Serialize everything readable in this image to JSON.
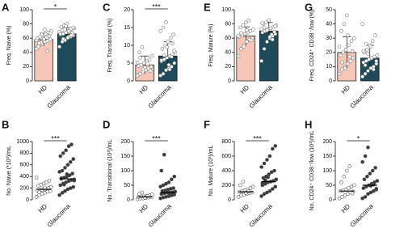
{
  "chart_data": [
    {
      "type": "bar",
      "panel": "A",
      "ylabel": "Freq. Naive (%)",
      "categories": [
        "HD",
        "Glaucoma"
      ],
      "values": [
        58,
        66
      ],
      "errors": [
        9,
        9
      ],
      "colors": [
        "#f6c6b8",
        "#1f4a5a"
      ],
      "ylim": [
        0,
        100
      ],
      "yticks": [
        0,
        20,
        40,
        60,
        80,
        100
      ],
      "significance": "*",
      "points": [
        [
          45,
          50,
          52,
          55,
          56,
          58,
          60,
          62,
          64,
          66,
          68,
          70,
          48,
          54,
          59,
          61,
          63,
          57,
          53,
          65,
          72,
          42,
          67,
          60
        ],
        [
          48,
          55,
          58,
          60,
          62,
          64,
          65,
          66,
          68,
          70,
          72,
          74,
          76,
          78,
          80,
          63,
          67,
          69,
          71,
          57,
          61,
          73,
          75,
          66,
          59,
          77,
          70,
          64
        ]
      ]
    },
    {
      "type": "bar",
      "panel": "C",
      "ylabel": "Freq. Transitional (%)",
      "categories": [
        "HD",
        "Glaucoma"
      ],
      "values": [
        4.5,
        7
      ],
      "errors": [
        2.5,
        4
      ],
      "colors": [
        "#f6c6b8",
        "#1f4a5a"
      ],
      "ylim": [
        0,
        20
      ],
      "yticks": [
        0,
        5,
        10,
        15,
        20
      ],
      "significance": "***",
      "points": [
        [
          1.5,
          2,
          2.5,
          3,
          3.5,
          4,
          4.2,
          4.5,
          5,
          5.5,
          6,
          7,
          8,
          9.5,
          3.8,
          4.8,
          2.8,
          5.2,
          6.5,
          3.2
        ],
        [
          1.5,
          2,
          3,
          3.5,
          4,
          5,
          5.5,
          6,
          6.5,
          7,
          7.5,
          8,
          9,
          10,
          11,
          12,
          13,
          14,
          15,
          16.5,
          4.5,
          6.8,
          8.5,
          5.8,
          7.2,
          9.5,
          3.2,
          10.5
        ]
      ]
    },
    {
      "type": "bar",
      "panel": "E",
      "ylabel": "Freq. Mature (%)",
      "categories": [
        "HD",
        "Glaucoma"
      ],
      "values": [
        63,
        70
      ],
      "errors": [
        13,
        12
      ],
      "colors": [
        "#f6c6b8",
        "#1f4a5a"
      ],
      "ylim": [
        0,
        100
      ],
      "yticks": [
        0,
        20,
        40,
        60,
        80,
        100
      ],
      "points": [
        [
          35,
          45,
          50,
          55,
          58,
          60,
          62,
          64,
          66,
          68,
          70,
          72,
          75,
          78,
          82,
          85,
          57,
          63,
          67,
          48,
          71
        ],
        [
          28,
          45,
          55,
          60,
          63,
          66,
          68,
          70,
          72,
          74,
          76,
          78,
          80,
          82,
          85,
          65,
          69,
          73,
          75,
          71,
          62,
          58,
          77,
          81
        ]
      ]
    },
    {
      "type": "bar",
      "panel": "G",
      "ylabel": "Freq. CD24⁺ CD38⁻/low (%)",
      "categories": [
        "HD",
        "Glaucoma"
      ],
      "values": [
        20,
        16
      ],
      "errors": [
        11,
        9
      ],
      "colors": [
        "#f6c6b8",
        "#1f4a5a"
      ],
      "ylim": [
        0,
        50
      ],
      "yticks": [
        0,
        10,
        20,
        30,
        40,
        50
      ],
      "points": [
        [
          5,
          8,
          10,
          12,
          14,
          16,
          18,
          20,
          22,
          25,
          28,
          30,
          35,
          40,
          46,
          17,
          21,
          24,
          13,
          9,
          32
        ],
        [
          3,
          5,
          7,
          9,
          10,
          12,
          13,
          14,
          15,
          16,
          17,
          18,
          20,
          22,
          25,
          28,
          32,
          40,
          11,
          19,
          24,
          8,
          14,
          21,
          26
        ]
      ]
    },
    {
      "type": "strip",
      "panel": "B",
      "ylabel": "No. Naive (*10³)/mL",
      "categories": [
        "HD",
        "Glaucoma"
      ],
      "medians": [
        180,
        360
      ],
      "colors": [
        "#ffffff",
        "#3a3a3a"
      ],
      "ylim": [
        0,
        1000
      ],
      "yticks": [
        0,
        200,
        400,
        600,
        800,
        1000
      ],
      "significance": "***",
      "points": [
        [
          50,
          80,
          100,
          120,
          140,
          150,
          160,
          170,
          180,
          190,
          200,
          220,
          240,
          260,
          280,
          300,
          330,
          380,
          130,
          175,
          210
        ],
        [
          80,
          120,
          150,
          180,
          200,
          220,
          250,
          280,
          300,
          320,
          340,
          350,
          360,
          380,
          400,
          420,
          450,
          480,
          500,
          550,
          600,
          650,
          700,
          750,
          800,
          850,
          920,
          950,
          330,
          370,
          260,
          440
        ]
      ]
    },
    {
      "type": "strip",
      "panel": "D",
      "ylabel": "No. Transitional (10³)/mL",
      "categories": [
        "HD",
        "Glaucoma"
      ],
      "medians": [
        10,
        25
      ],
      "colors": [
        "#ffffff",
        "#3a3a3a"
      ],
      "ylim": [
        0,
        200
      ],
      "yticks": [
        0,
        50,
        100,
        150,
        200
      ],
      "significance": "***",
      "points": [
        [
          2,
          4,
          5,
          6,
          8,
          9,
          10,
          11,
          12,
          14,
          15,
          18,
          20,
          25,
          7,
          13
        ],
        [
          5,
          8,
          10,
          12,
          15,
          18,
          20,
          22,
          24,
          25,
          26,
          28,
          30,
          32,
          35,
          38,
          40,
          45,
          50,
          55,
          60,
          70,
          80,
          100,
          155,
          27,
          21,
          17
        ]
      ]
    },
    {
      "type": "strip",
      "panel": "F",
      "ylabel": "No. Mature (10³)/mL",
      "categories": [
        "HD",
        "Glaucoma"
      ],
      "medians": [
        110,
        250
      ],
      "colors": [
        "#ffffff",
        "#3a3a3a"
      ],
      "ylim": [
        0,
        800
      ],
      "yticks": [
        0,
        200,
        400,
        600,
        800
      ],
      "significance": "***",
      "points": [
        [
          40,
          60,
          70,
          80,
          90,
          100,
          110,
          120,
          130,
          140,
          160,
          180,
          200,
          250,
          95,
          115
        ],
        [
          50,
          80,
          100,
          120,
          150,
          180,
          200,
          220,
          240,
          250,
          260,
          280,
          300,
          320,
          350,
          380,
          400,
          450,
          500,
          550,
          600,
          700,
          740,
          230,
          270,
          310
        ]
      ]
    },
    {
      "type": "strip",
      "panel": "H",
      "ylabel": "No. CD24⁺ CD38⁻/low (10³)/mL",
      "categories": [
        "HD",
        "Glaucoma"
      ],
      "medians": [
        30,
        50
      ],
      "colors": [
        "#ffffff",
        "#3a3a3a"
      ],
      "ylim": [
        0,
        200
      ],
      "yticks": [
        0,
        50,
        100,
        150,
        200
      ],
      "significance": "*",
      "points": [
        [
          5,
          10,
          15,
          20,
          25,
          28,
          30,
          32,
          35,
          40,
          45,
          50,
          60,
          80,
          100,
          115,
          22
        ],
        [
          5,
          10,
          20,
          25,
          30,
          35,
          40,
          45,
          50,
          55,
          60,
          65,
          70,
          80,
          90,
          100,
          110,
          130,
          150,
          180,
          48,
          52,
          38
        ]
      ]
    }
  ]
}
